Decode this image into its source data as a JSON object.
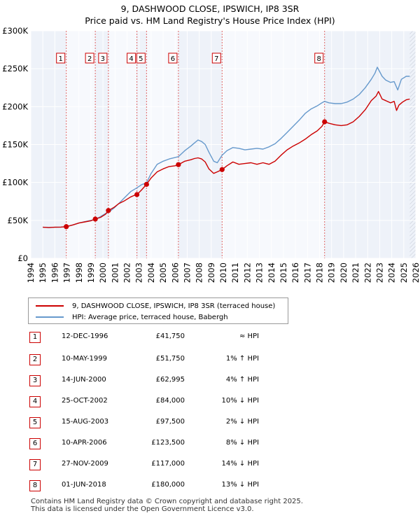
{
  "chart_data": {
    "type": "line",
    "title": "9, DASHWOOD CLOSE, IPSWICH, IP8 3SR",
    "subtitle": "Price paid vs. HM Land Registry's House Price Index (HPI)",
    "xlim": [
      1994,
      2026
    ],
    "ylim": [
      0,
      300000
    ],
    "x_ticks": [
      "1994",
      "1995",
      "1996",
      "1997",
      "1998",
      "1999",
      "2000",
      "2001",
      "2002",
      "2003",
      "2004",
      "2005",
      "2006",
      "2007",
      "2008",
      "2009",
      "2010",
      "2011",
      "2012",
      "2013",
      "2014",
      "2015",
      "2016",
      "2017",
      "2018",
      "2019",
      "2020",
      "2021",
      "2022",
      "2023",
      "2024",
      "2025",
      "2026"
    ],
    "y_ticks": [
      {
        "value": 0,
        "label": "£0"
      },
      {
        "value": 50000,
        "label": "£50K"
      },
      {
        "value": 100000,
        "label": "£100K"
      },
      {
        "value": 150000,
        "label": "£150K"
      },
      {
        "value": 200000,
        "label": "£200K"
      },
      {
        "value": 250000,
        "label": "£250K"
      },
      {
        "value": 300000,
        "label": "£300K"
      }
    ],
    "grid": true,
    "series": [
      {
        "name": "9, DASHWOOD CLOSE, IPSWICH, IP8 3SR (terraced house)",
        "color": "#cc0000",
        "x": [
          1995.0,
          1995.5,
          1996.0,
          1996.5,
          1996.95,
          1997.5,
          1998.0,
          1998.5,
          1999.0,
          1999.36,
          1999.8,
          2000.2,
          2000.45,
          2000.9,
          2001.3,
          2001.8,
          2002.3,
          2002.6,
          2002.82,
          2003.2,
          2003.62,
          2004.0,
          2004.5,
          2005.0,
          2005.5,
          2006.0,
          2006.27,
          2006.8,
          2007.3,
          2007.6,
          2007.9,
          2008.2,
          2008.5,
          2008.8,
          2009.2,
          2009.5,
          2009.9,
          2010.3,
          2010.8,
          2011.3,
          2011.8,
          2012.3,
          2012.8,
          2013.3,
          2013.8,
          2014.3,
          2014.8,
          2015.3,
          2015.8,
          2016.3,
          2016.8,
          2017.3,
          2017.8,
          2018.2,
          2018.42,
          2018.8,
          2019.3,
          2019.8,
          2020.3,
          2020.8,
          2021.3,
          2021.8,
          2022.3,
          2022.7,
          2022.9,
          2023.2,
          2023.5,
          2023.9,
          2024.2,
          2024.4,
          2024.6,
          2024.9,
          2025.2,
          2025.5
        ],
        "values": [
          41000,
          40500,
          41000,
          41200,
          41750,
          44000,
          46500,
          48000,
          49500,
          51750,
          54000,
          58000,
          62995,
          67000,
          72000,
          76000,
          81000,
          83000,
          84000,
          90000,
          97500,
          106000,
          114000,
          118000,
          121000,
          122000,
          123500,
          128000,
          130000,
          131500,
          132500,
          131000,
          127000,
          118000,
          112000,
          114000,
          117000,
          122000,
          127000,
          124000,
          125000,
          126000,
          124000,
          126000,
          124000,
          128000,
          136000,
          143000,
          148000,
          152000,
          157000,
          163000,
          168000,
          174000,
          180000,
          178000,
          176000,
          175000,
          176000,
          180000,
          187000,
          196000,
          208000,
          214000,
          220000,
          210000,
          208000,
          205000,
          207000,
          195000,
          202000,
          206000,
          209000,
          210000
        ]
      },
      {
        "name": "HPI: Average price, terraced house, Babergh",
        "color": "#6699cc",
        "x": [
          1995.0,
          1995.5,
          1996.0,
          1996.5,
          1996.95,
          1997.5,
          1998.0,
          1998.5,
          1999.0,
          1999.36,
          1999.8,
          2000.2,
          2000.45,
          2000.9,
          2001.3,
          2001.8,
          2002.3,
          2002.82,
          2003.2,
          2003.62,
          2004.0,
          2004.5,
          2005.0,
          2005.5,
          2006.0,
          2006.27,
          2006.8,
          2007.3,
          2007.6,
          2007.9,
          2008.2,
          2008.5,
          2008.8,
          2009.2,
          2009.5,
          2009.9,
          2010.3,
          2010.8,
          2011.3,
          2011.8,
          2012.3,
          2012.8,
          2013.3,
          2013.8,
          2014.3,
          2014.8,
          2015.3,
          2015.8,
          2016.3,
          2016.8,
          2017.3,
          2017.8,
          2018.2,
          2018.42,
          2018.8,
          2019.3,
          2019.8,
          2020.3,
          2020.8,
          2021.3,
          2021.8,
          2022.3,
          2022.6,
          2022.8,
          2023.2,
          2023.5,
          2023.9,
          2024.2,
          2024.5,
          2024.8,
          2025.2,
          2025.5
        ],
        "values": [
          41000,
          40500,
          41000,
          41200,
          41800,
          44000,
          46500,
          48500,
          50000,
          51200,
          55000,
          59000,
          60500,
          66000,
          72000,
          80000,
          88000,
          93000,
          97000,
          99500,
          112000,
          124000,
          128000,
          131000,
          133000,
          134000,
          142000,
          148000,
          152000,
          156000,
          154000,
          150000,
          140000,
          128000,
          126000,
          136000,
          142000,
          146000,
          145000,
          143000,
          144000,
          145000,
          144000,
          147000,
          151000,
          158000,
          166000,
          174000,
          182000,
          191000,
          197000,
          201000,
          205000,
          207000,
          205000,
          204000,
          204000,
          206000,
          210000,
          216000,
          225000,
          236000,
          244000,
          252000,
          240000,
          235000,
          232000,
          233000,
          222000,
          236000,
          240000,
          240000
        ]
      }
    ],
    "sales": [
      {
        "num": "1",
        "date": "12-DEC-1996",
        "x": 1996.95,
        "price": 41750,
        "price_label": "£41,750",
        "hpi": "≈ HPI"
      },
      {
        "num": "2",
        "date": "10-MAY-1999",
        "x": 1999.36,
        "price": 51750,
        "price_label": "£51,750",
        "hpi": "1% ↑ HPI"
      },
      {
        "num": "3",
        "date": "14-JUN-2000",
        "x": 2000.45,
        "price": 62995,
        "price_label": "£62,995",
        "hpi": "4% ↑ HPI"
      },
      {
        "num": "4",
        "date": "25-OCT-2002",
        "x": 2002.82,
        "price": 84000,
        "price_label": "£84,000",
        "hpi": "10% ↓ HPI"
      },
      {
        "num": "5",
        "date": "15-AUG-2003",
        "x": 2003.62,
        "price": 97500,
        "price_label": "£97,500",
        "hpi": "2% ↓ HPI"
      },
      {
        "num": "6",
        "date": "10-APR-2006",
        "x": 2006.27,
        "price": 123500,
        "price_label": "£123,500",
        "hpi": "8% ↓ HPI"
      },
      {
        "num": "7",
        "date": "27-NOV-2009",
        "x": 2009.9,
        "price": 117000,
        "price_label": "£117,000",
        "hpi": "14% ↓ HPI"
      },
      {
        "num": "8",
        "date": "01-JUN-2018",
        "x": 2018.42,
        "price": 180000,
        "price_label": "£180,000",
        "hpi": "13% ↓ HPI"
      }
    ],
    "future_from": 2025.5
  },
  "legend": {
    "property_label": "9, DASHWOOD CLOSE, IPSWICH, IP8 3SR (terraced house)",
    "hpi_label": "HPI: Average price, terraced house, Babergh",
    "property_color": "#cc0000",
    "hpi_color": "#6699cc"
  },
  "footer": {
    "line1": "Contains HM Land Registry data © Crown copyright and database right 2025.",
    "line2": "This data is licensed under the Open Government Licence v3.0."
  }
}
